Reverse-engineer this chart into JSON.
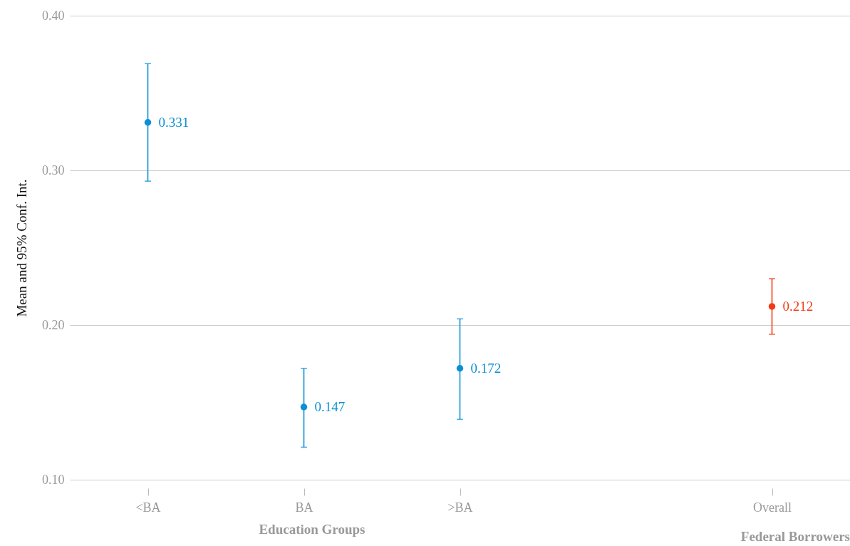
{
  "chart_data": {
    "type": "scatter",
    "ylabel": "Mean and 95% Conf. Int.",
    "categories": [
      "<BA",
      "BA",
      ">BA",
      null,
      "Overall"
    ],
    "series": [
      {
        "color": "#0b8fd6",
        "values": [
          0.331,
          0.147,
          0.172,
          null,
          null
        ],
        "errors": [
          [
            0.293,
            0.369
          ],
          [
            0.121,
            0.172
          ],
          [
            0.139,
            0.204
          ],
          null,
          null
        ]
      },
      {
        "color": "#f23b16",
        "values": [
          null,
          null,
          null,
          null,
          0.212
        ],
        "errors": [
          null,
          null,
          null,
          null,
          [
            0.194,
            0.23
          ]
        ]
      }
    ],
    "ylim": [
      0.1,
      0.4
    ],
    "yticks": [
      {
        "value": 0.1,
        "label": "0.10"
      },
      {
        "value": 0.2,
        "label": "0.20"
      },
      {
        "value": 0.3,
        "label": "0.30"
      },
      {
        "value": 0.4,
        "label": "0.40"
      }
    ],
    "grid": "y",
    "marker": "circle",
    "data_labels": true,
    "xlabel": "Education Groups",
    "annotations": [
      "Federal Borrowers"
    ]
  }
}
